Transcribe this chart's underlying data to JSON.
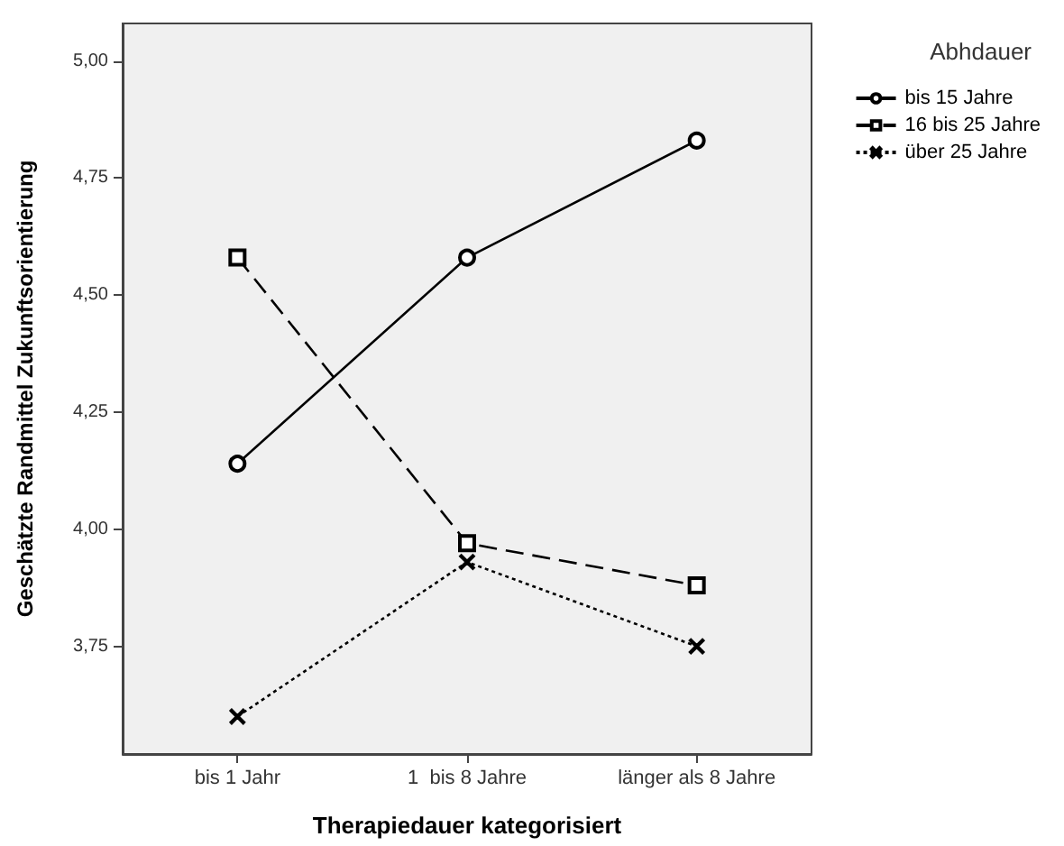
{
  "chart_data": {
    "type": "line",
    "xlabel": "Therapiedauer kategorisiert",
    "ylabel": "Geschätzte Randmittel Zukunftsorientierung",
    "legend_title": "Abhdauer",
    "legend": "top right",
    "grid": false,
    "categories": [
      "bis 1 Jahr",
      "1  bis 8 Jahre",
      "länger als 8 Jahre"
    ],
    "ylim": [
      3.52,
      5.08
    ],
    "yticks": [
      {
        "value": 3.75,
        "label": "3,75"
      },
      {
        "value": 4,
        "label": "4,00"
      },
      {
        "value": 4.25,
        "label": "4,25"
      },
      {
        "value": 4.5,
        "label": "4,50"
      },
      {
        "value": 4.75,
        "label": "4,75"
      },
      {
        "value": 5,
        "label": "5,00"
      }
    ],
    "series": [
      {
        "name": "bis 15 Jahre",
        "color": "#000000",
        "values": [
          4.14,
          4.58,
          4.83
        ],
        "marker": "circle",
        "line_style": "solid"
      },
      {
        "name": "16 bis 25 Jahre",
        "color": "#000000",
        "values": [
          4.58,
          3.97,
          3.88
        ],
        "marker": "square",
        "line_style": "dashed"
      },
      {
        "name": "über 25 Jahre",
        "color": "#000000",
        "values": [
          3.6,
          3.93,
          3.75
        ],
        "marker": "cross",
        "line_style": "dotted"
      }
    ]
  }
}
